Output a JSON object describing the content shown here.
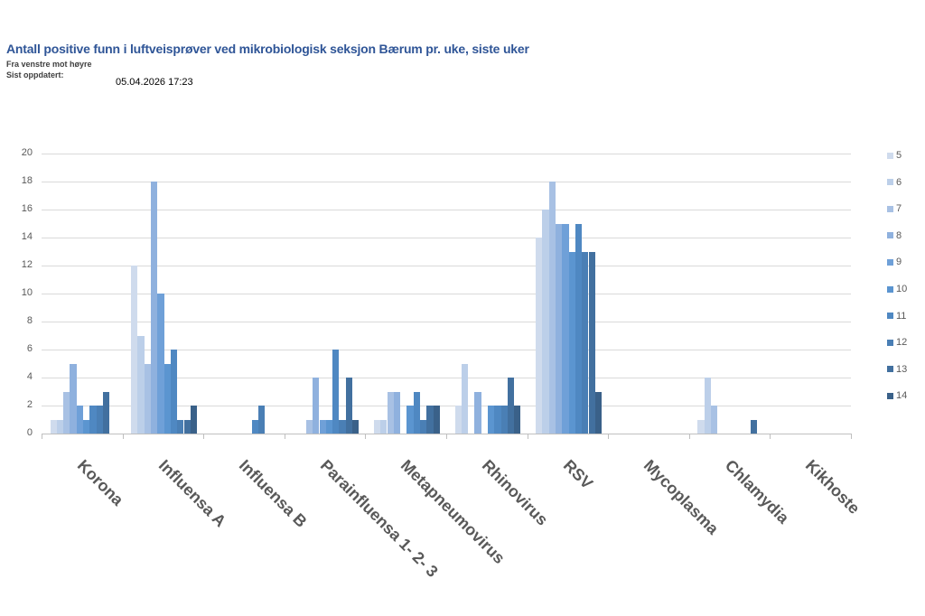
{
  "header": {
    "title": "Antall positive funn i luftveisprøver ved mikrobiologisk seksjon Bærum pr. uke, siste uker",
    "subtitle": "Fra venstre mot høyre",
    "updated_label": "Sist oppdatert:",
    "updated_value": "05.04.2026 17:23"
  },
  "chart_data": {
    "type": "bar",
    "title": "Antall positive funn i luftveisprøver ved mikrobiologisk seksjon Bærum pr. uke, siste uker",
    "xlabel": "",
    "ylabel": "",
    "ylim": [
      0,
      20
    ],
    "yticks": [
      0,
      2,
      4,
      6,
      8,
      10,
      12,
      14,
      16,
      18,
      20
    ],
    "grid": true,
    "legend_position": "right",
    "categories": [
      "Korona",
      "Influensa A",
      "Influensa B",
      "Parainfluensa 1- 2- 3",
      "Metapneumovirus",
      "Rhinovirus",
      "RSV",
      "Mycoplasma",
      "Chlamydia",
      "Kikhoste"
    ],
    "series": [
      {
        "name": "5",
        "color": "#cfdbed",
        "values": [
          1,
          12,
          0,
          0,
          1,
          2,
          14,
          0,
          1,
          0
        ]
      },
      {
        "name": "6",
        "color": "#bccfe9",
        "values": [
          1,
          7,
          0,
          0,
          1,
          5,
          16,
          0,
          4,
          0
        ]
      },
      {
        "name": "7",
        "color": "#a8c1e4",
        "values": [
          3,
          5,
          0,
          1,
          3,
          0,
          18,
          0,
          2,
          0
        ]
      },
      {
        "name": "8",
        "color": "#8fb1de",
        "values": [
          5,
          18,
          0,
          4,
          3,
          3,
          15,
          0,
          0,
          0
        ]
      },
      {
        "name": "9",
        "color": "#6fa0d8",
        "values": [
          2,
          10,
          0,
          1,
          0,
          0,
          15,
          0,
          0,
          0
        ]
      },
      {
        "name": "10",
        "color": "#5b95d0",
        "values": [
          1,
          5,
          0,
          1,
          2,
          2,
          13,
          0,
          0,
          0
        ]
      },
      {
        "name": "11",
        "color": "#4f88c2",
        "values": [
          2,
          6,
          1,
          6,
          3,
          2,
          15,
          0,
          0,
          0
        ]
      },
      {
        "name": "12",
        "color": "#4a7fb5",
        "values": [
          2,
          1,
          2,
          1,
          1,
          2,
          13,
          0,
          0,
          0
        ]
      },
      {
        "name": "13",
        "color": "#42709f",
        "values": [
          3,
          1,
          0,
          4,
          2,
          4,
          13,
          0,
          1,
          0
        ]
      },
      {
        "name": "14",
        "color": "#3a6189",
        "values": [
          0,
          2,
          0,
          1,
          2,
          2,
          3,
          0,
          0,
          0
        ]
      }
    ]
  }
}
